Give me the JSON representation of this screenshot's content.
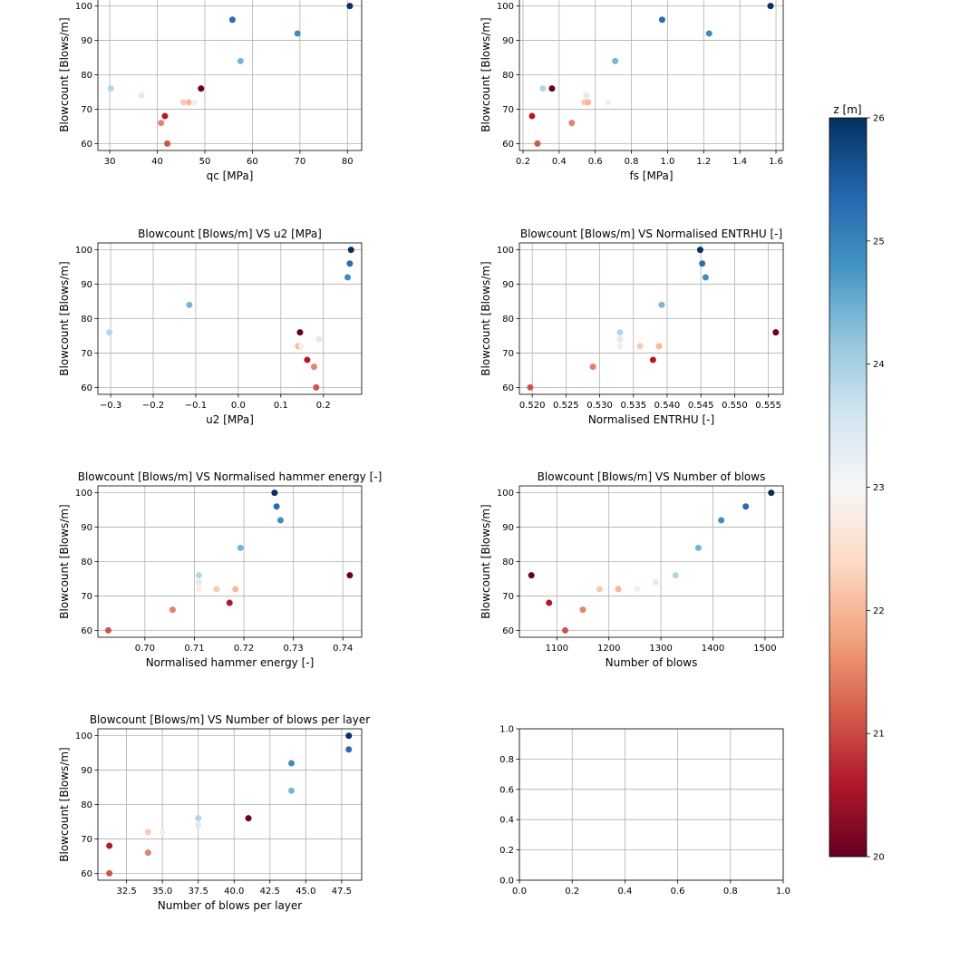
{
  "chart_data": {
    "colorbar": {
      "label": "z [m]",
      "min": 20,
      "max": 26,
      "ticks": [
        20,
        21,
        22,
        23,
        24,
        25,
        26
      ],
      "colormap": "RdBu",
      "colormap_stops": [
        "#67001f",
        "#b2182b",
        "#d6604d",
        "#f4a582",
        "#fddbc7",
        "#f7f7f7",
        "#d1e5f0",
        "#92c5de",
        "#4393c3",
        "#2166ac",
        "#053061"
      ]
    },
    "panels": [
      {
        "type": "scatter",
        "title": "",
        "xlabel": "qc [MPa]",
        "ylabel": "Blowcount [Blows/m]",
        "xlim": [
          27.5,
          83
        ],
        "ylim": [
          58,
          102
        ],
        "xticks": [
          30,
          40,
          50,
          60,
          70,
          80
        ],
        "xtick_labels": [
          "30",
          "40",
          "50",
          "60",
          "70",
          "80"
        ],
        "yticks": [
          60,
          70,
          80,
          90,
          100
        ],
        "ytick_labels": [
          "60",
          "70",
          "80",
          "90",
          "100"
        ],
        "points": [
          {
            "x": 80.5,
            "y": 100,
            "z": 26.0
          },
          {
            "x": 55.8,
            "y": 96,
            "z": 25.3
          },
          {
            "x": 69.5,
            "y": 92,
            "z": 24.9
          },
          {
            "x": 57.5,
            "y": 84,
            "z": 24.4
          },
          {
            "x": 30.2,
            "y": 76,
            "z": 23.9
          },
          {
            "x": 49.2,
            "y": 76,
            "z": 20.0
          },
          {
            "x": 36.7,
            "y": 74,
            "z": 23.4
          },
          {
            "x": 45.5,
            "y": 72,
            "z": 22.2
          },
          {
            "x": 46.6,
            "y": 72,
            "z": 22.0
          },
          {
            "x": 47.8,
            "y": 72,
            "z": 22.8
          },
          {
            "x": 41.6,
            "y": 68,
            "z": 20.6
          },
          {
            "x": 40.8,
            "y": 66,
            "z": 21.5
          },
          {
            "x": 42.1,
            "y": 60,
            "z": 21.1
          }
        ]
      },
      {
        "type": "scatter",
        "title": "",
        "xlabel": "fs [MPa]",
        "ylabel": "Blowcount [Blows/m]",
        "xlim": [
          0.18,
          1.64
        ],
        "ylim": [
          58,
          102
        ],
        "xticks": [
          0.2,
          0.4,
          0.6,
          0.8,
          1.0,
          1.2,
          1.4,
          1.6
        ],
        "xtick_labels": [
          "0.2",
          "0.4",
          "0.6",
          "0.8",
          "1.0",
          "1.2",
          "1.4",
          "1.6"
        ],
        "yticks": [
          60,
          70,
          80,
          90,
          100
        ],
        "ytick_labels": [
          "60",
          "70",
          "80",
          "90",
          "100"
        ],
        "points": [
          {
            "x": 1.57,
            "y": 100,
            "z": 26.0
          },
          {
            "x": 0.97,
            "y": 96,
            "z": 25.3
          },
          {
            "x": 1.23,
            "y": 92,
            "z": 24.9
          },
          {
            "x": 0.71,
            "y": 84,
            "z": 24.4
          },
          {
            "x": 0.31,
            "y": 76,
            "z": 23.9
          },
          {
            "x": 0.36,
            "y": 76,
            "z": 20.0
          },
          {
            "x": 0.55,
            "y": 74,
            "z": 23.4
          },
          {
            "x": 0.54,
            "y": 72,
            "z": 22.2
          },
          {
            "x": 0.56,
            "y": 72,
            "z": 22.0
          },
          {
            "x": 0.67,
            "y": 72,
            "z": 22.8
          },
          {
            "x": 0.25,
            "y": 68,
            "z": 20.6
          },
          {
            "x": 0.47,
            "y": 66,
            "z": 21.5
          },
          {
            "x": 0.28,
            "y": 60,
            "z": 21.1
          }
        ]
      },
      {
        "type": "scatter",
        "title": "Blowcount [Blows/m] VS u2 [MPa]",
        "xlabel": "u2 [MPa]",
        "ylabel": "Blowcount [Blows/m]",
        "xlim": [
          -0.33,
          0.29
        ],
        "ylim": [
          58,
          102
        ],
        "xticks": [
          -0.3,
          -0.2,
          -0.1,
          0.0,
          0.1,
          0.2
        ],
        "xtick_labels": [
          "−0.3",
          "−0.2",
          "−0.1",
          "0.0",
          "0.1",
          "0.2"
        ],
        "yticks": [
          60,
          70,
          80,
          90,
          100
        ],
        "ytick_labels": [
          "60",
          "70",
          "80",
          "90",
          "100"
        ],
        "points": [
          {
            "x": 0.265,
            "y": 100,
            "z": 26.0
          },
          {
            "x": 0.262,
            "y": 96,
            "z": 25.3
          },
          {
            "x": 0.257,
            "y": 92,
            "z": 24.9
          },
          {
            "x": -0.115,
            "y": 84,
            "z": 24.4
          },
          {
            "x": -0.303,
            "y": 76,
            "z": 23.9
          },
          {
            "x": 0.145,
            "y": 76,
            "z": 20.0
          },
          {
            "x": 0.19,
            "y": 74,
            "z": 23.4
          },
          {
            "x": 0.14,
            "y": 72,
            "z": 22.2
          },
          {
            "x": 0.143,
            "y": 72,
            "z": 22.0
          },
          {
            "x": 0.148,
            "y": 72,
            "z": 22.8
          },
          {
            "x": 0.162,
            "y": 68,
            "z": 20.6
          },
          {
            "x": 0.178,
            "y": 66,
            "z": 21.5
          },
          {
            "x": 0.183,
            "y": 60,
            "z": 21.1
          }
        ]
      },
      {
        "type": "scatter",
        "title": "Blowcount [Blows/m] VS Normalised ENTRHU [-]",
        "xlabel": "Normalised ENTRHU [-]",
        "ylabel": "Blowcount [Blows/m]",
        "xlim": [
          0.5181,
          0.5572
        ],
        "ylim": [
          58,
          102
        ],
        "xticks": [
          0.52,
          0.525,
          0.53,
          0.535,
          0.54,
          0.545,
          0.55,
          0.555
        ],
        "xtick_labels": [
          "0.520",
          "0.525",
          "0.530",
          "0.535",
          "0.540",
          "0.545",
          "0.550",
          "0.555"
        ],
        "yticks": [
          60,
          70,
          80,
          90,
          100
        ],
        "ytick_labels": [
          "60",
          "70",
          "80",
          "90",
          "100"
        ],
        "points": [
          {
            "x": 0.5449,
            "y": 100,
            "z": 26.0
          },
          {
            "x": 0.5452,
            "y": 96,
            "z": 25.3
          },
          {
            "x": 0.5457,
            "y": 92,
            "z": 24.9
          },
          {
            "x": 0.5392,
            "y": 84,
            "z": 24.4
          },
          {
            "x": 0.533,
            "y": 76,
            "z": 23.9
          },
          {
            "x": 0.5561,
            "y": 76,
            "z": 20.0
          },
          {
            "x": 0.533,
            "y": 74,
            "z": 23.4
          },
          {
            "x": 0.536,
            "y": 72,
            "z": 22.2
          },
          {
            "x": 0.5388,
            "y": 72,
            "z": 22.0
          },
          {
            "x": 0.533,
            "y": 72,
            "z": 22.8
          },
          {
            "x": 0.5379,
            "y": 68,
            "z": 20.6
          },
          {
            "x": 0.529,
            "y": 66,
            "z": 21.5
          },
          {
            "x": 0.5197,
            "y": 60,
            "z": 21.1
          }
        ]
      },
      {
        "type": "scatter",
        "title": "Blowcount [Blows/m] VS Normalised hammer energy [-]",
        "xlabel": "Normalised hammer energy [-]",
        "ylabel": "Blowcount [Blows/m]",
        "xlim": [
          0.6905,
          0.7438
        ],
        "ylim": [
          58,
          102
        ],
        "xticks": [
          0.7,
          0.71,
          0.72,
          0.73,
          0.74
        ],
        "xtick_labels": [
          "0.70",
          "0.71",
          "0.72",
          "0.73",
          "0.74"
        ],
        "yticks": [
          60,
          70,
          80,
          90,
          100
        ],
        "ytick_labels": [
          "60",
          "70",
          "80",
          "90",
          "100"
        ],
        "points": [
          {
            "x": 0.7262,
            "y": 100,
            "z": 26.0
          },
          {
            "x": 0.7266,
            "y": 96,
            "z": 25.3
          },
          {
            "x": 0.7274,
            "y": 92,
            "z": 24.9
          },
          {
            "x": 0.7193,
            "y": 84,
            "z": 24.4
          },
          {
            "x": 0.7109,
            "y": 76,
            "z": 23.9
          },
          {
            "x": 0.7414,
            "y": 76,
            "z": 20.0
          },
          {
            "x": 0.7109,
            "y": 74,
            "z": 23.4
          },
          {
            "x": 0.7145,
            "y": 72,
            "z": 22.2
          },
          {
            "x": 0.7183,
            "y": 72,
            "z": 22.0
          },
          {
            "x": 0.7109,
            "y": 72,
            "z": 22.8
          },
          {
            "x": 0.7171,
            "y": 68,
            "z": 20.6
          },
          {
            "x": 0.7056,
            "y": 66,
            "z": 21.5
          },
          {
            "x": 0.6926,
            "y": 60,
            "z": 21.1
          }
        ]
      },
      {
        "type": "scatter",
        "title": "Blowcount [Blows/m] VS Number of blows",
        "xlabel": "Number of blows",
        "ylabel": "Blowcount [Blows/m]",
        "xlim": [
          1028,
          1535
        ],
        "ylim": [
          58,
          102
        ],
        "xticks": [
          1100,
          1200,
          1300,
          1400,
          1500
        ],
        "xtick_labels": [
          "1100",
          "1200",
          "1300",
          "1400",
          "1500"
        ],
        "yticks": [
          60,
          70,
          80,
          90,
          100
        ],
        "ytick_labels": [
          "60",
          "70",
          "80",
          "90",
          "100"
        ],
        "points": [
          {
            "x": 1512,
            "y": 100,
            "z": 26.0
          },
          {
            "x": 1463,
            "y": 96,
            "z": 25.3
          },
          {
            "x": 1416,
            "y": 92,
            "z": 24.9
          },
          {
            "x": 1372,
            "y": 84,
            "z": 24.4
          },
          {
            "x": 1328,
            "y": 76,
            "z": 23.9
          },
          {
            "x": 1051,
            "y": 76,
            "z": 20.0
          },
          {
            "x": 1290,
            "y": 74,
            "z": 23.4
          },
          {
            "x": 1182,
            "y": 72,
            "z": 22.2
          },
          {
            "x": 1218,
            "y": 72,
            "z": 22.0
          },
          {
            "x": 1254,
            "y": 72,
            "z": 22.8
          },
          {
            "x": 1085,
            "y": 68,
            "z": 20.6
          },
          {
            "x": 1150,
            "y": 66,
            "z": 21.5
          },
          {
            "x": 1116,
            "y": 60,
            "z": 21.1
          }
        ]
      },
      {
        "type": "scatter",
        "title": "Blowcount [Blows/m] VS Number of blows per layer",
        "xlabel": "Number of blows per layer",
        "ylabel": "Blowcount [Blows/m]",
        "xlim": [
          30.5,
          48.9
        ],
        "ylim": [
          58,
          102
        ],
        "xticks": [
          32.5,
          35.0,
          37.5,
          40.0,
          42.5,
          45.0,
          47.5
        ],
        "xtick_labels": [
          "32.5",
          "35.0",
          "37.5",
          "40.0",
          "42.5",
          "45.0",
          "47.5"
        ],
        "yticks": [
          60,
          70,
          80,
          90,
          100
        ],
        "ytick_labels": [
          "60",
          "70",
          "80",
          "90",
          "100"
        ],
        "points": [
          {
            "x": 48.0,
            "y": 100,
            "z": 26.0
          },
          {
            "x": 48.0,
            "y": 96,
            "z": 25.3
          },
          {
            "x": 44.0,
            "y": 92,
            "z": 24.9
          },
          {
            "x": 44.0,
            "y": 84,
            "z": 24.4
          },
          {
            "x": 37.5,
            "y": 76,
            "z": 23.9
          },
          {
            "x": 41.0,
            "y": 76,
            "z": 20.0
          },
          {
            "x": 37.5,
            "y": 74,
            "z": 23.4
          },
          {
            "x": 34.0,
            "y": 72,
            "z": 22.2
          },
          {
            "x": 35.0,
            "y": 72,
            "z": 22.8
          },
          {
            "x": 31.3,
            "y": 68,
            "z": 20.6
          },
          {
            "x": 34.0,
            "y": 66,
            "z": 21.5
          },
          {
            "x": 31.3,
            "y": 60,
            "z": 21.1
          }
        ]
      },
      {
        "type": "scatter",
        "title": "",
        "xlabel": "",
        "ylabel": "",
        "xlim": [
          0,
          1
        ],
        "ylim": [
          0,
          1
        ],
        "xticks": [
          0,
          0.2,
          0.4,
          0.6,
          0.8,
          1.0
        ],
        "xtick_labels": [
          "0.0",
          "0.2",
          "0.4",
          "0.6",
          "0.8",
          "1.0"
        ],
        "yticks": [
          0,
          0.2,
          0.4,
          0.6,
          0.8,
          1.0
        ],
        "ytick_labels": [
          "0.0",
          "0.2",
          "0.4",
          "0.6",
          "0.8",
          "1.0"
        ],
        "points": []
      }
    ]
  }
}
